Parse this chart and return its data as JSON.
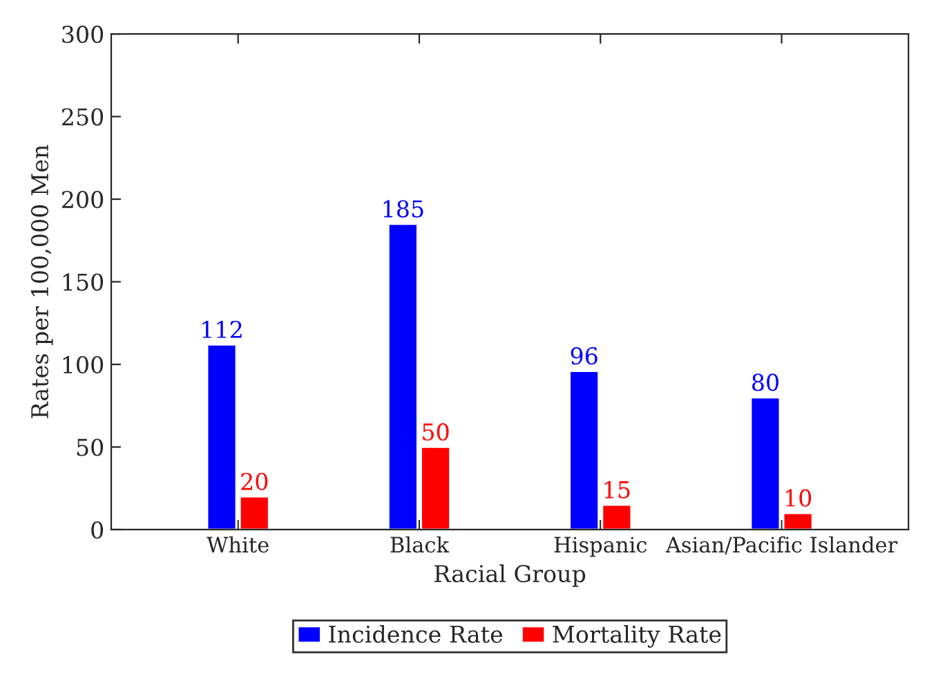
{
  "chart_data": {
    "type": "bar",
    "xlabel": "Racial Group",
    "ylabel": "Rates per 100,000 Men",
    "categories": [
      "White",
      "Black",
      "Hispanic",
      "Asian/Pacific Islander"
    ],
    "series": [
      {
        "name": "Incidence Rate",
        "color": "#0000ff",
        "values": [
          112,
          185,
          96,
          80
        ]
      },
      {
        "name": "Mortality Rate",
        "color": "#ff0000",
        "values": [
          20,
          50,
          15,
          10
        ]
      }
    ],
    "ylim": [
      0,
      300
    ],
    "yticks": [
      0,
      50,
      100,
      150,
      200,
      250,
      300
    ],
    "data_labels": true,
    "grid": false,
    "legend": "bottom"
  }
}
